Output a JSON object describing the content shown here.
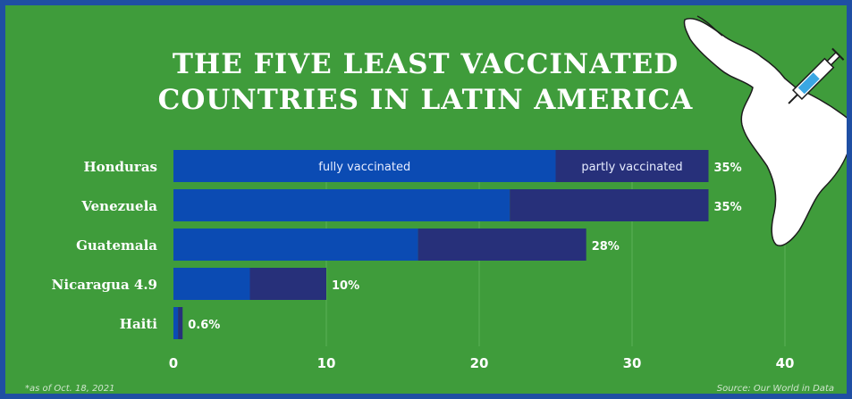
{
  "title_lines": [
    "THE FIVE LEAST VACCINATED",
    "COUNTRIES IN LATIN AMERICA"
  ],
  "footnote": "*as of Oct. 18, 2021",
  "source": "Source: Our World in Data",
  "colors": {
    "background": "#3f9c3b",
    "border": "#1f4fa3",
    "fully": "#0b4bb3",
    "partly": "#27307a",
    "map": "#ffffff"
  },
  "decorations": {
    "map_icon": "south-america-map-icon",
    "syringe_icon": "syringe-icon"
  },
  "chart_data": {
    "type": "bar",
    "orientation": "horizontal",
    "stacked": true,
    "categories": [
      "Honduras",
      "Venezuela",
      "Guatemala",
      "Nicaragua 4.9",
      "Haiti"
    ],
    "series": [
      {
        "name": "fully vaccinated",
        "values": [
          25,
          22,
          16,
          5,
          0.3
        ]
      },
      {
        "name": "partly vaccinated",
        "values": [
          10,
          13,
          11,
          5,
          0.3
        ]
      }
    ],
    "value_labels": [
      "35%",
      "35%",
      "28%",
      "10%",
      "0.6%"
    ],
    "xlim": [
      0,
      40
    ],
    "xticks": [
      "0",
      "10",
      "20",
      "30",
      "40"
    ],
    "grid": true,
    "legend": "inside-first-bar"
  }
}
